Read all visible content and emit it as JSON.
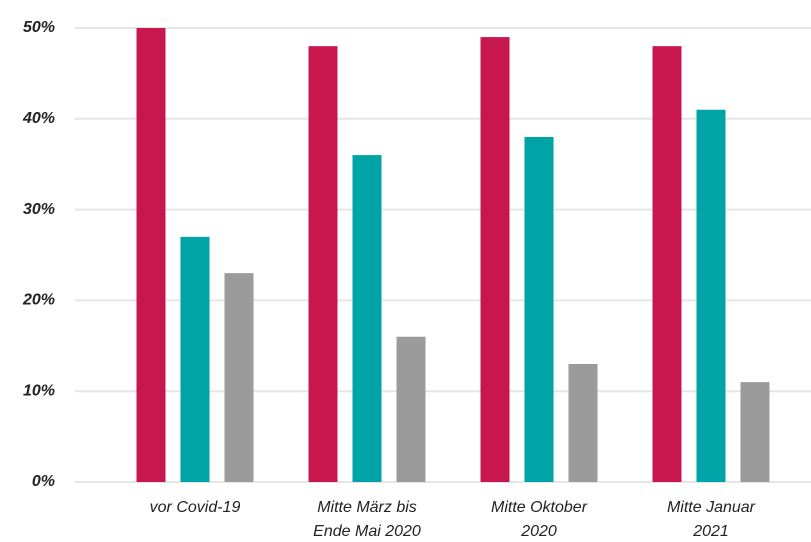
{
  "chart_data": {
    "type": "bar",
    "categories": [
      "vor Covid-19",
      "Mitte März bis\nEnde Mai 2020",
      "Mitte Oktober\n2020",
      "Mitte Januar\n2021"
    ],
    "series": [
      {
        "color": "#c8174f",
        "values": [
          50,
          48,
          49,
          48
        ]
      },
      {
        "color": "#00a3a6",
        "values": [
          27,
          36,
          38,
          41
        ]
      },
      {
        "color": "#9b9b9b",
        "values": [
          23,
          16,
          13,
          11
        ]
      }
    ],
    "ylim": [
      0,
      50
    ],
    "yticks": [
      {
        "value": 0,
        "label": "0%"
      },
      {
        "value": 10,
        "label": "10%"
      },
      {
        "value": 20,
        "label": "20%"
      },
      {
        "value": 30,
        "label": "30%"
      },
      {
        "value": 40,
        "label": "40%"
      },
      {
        "value": 50,
        "label": "50%"
      }
    ],
    "grid": true
  }
}
